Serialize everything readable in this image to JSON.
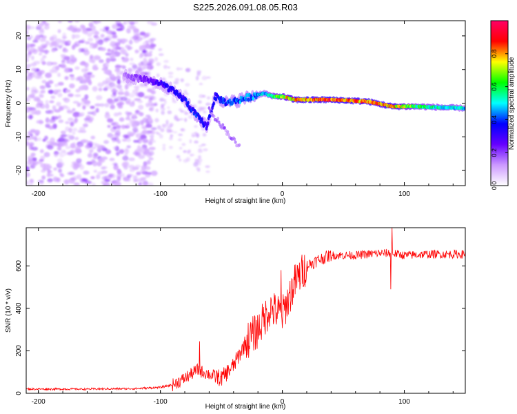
{
  "title": "S225.2026.091.08.05.R03",
  "chart_data": [
    {
      "type": "heatmap",
      "title": "S225.2026.091.08.05.R03",
      "xlabel": "Height of straight line (km)",
      "ylabel": "Frequency (Hz)",
      "xlim": [
        -210,
        150
      ],
      "ylim": [
        -24.5,
        24.5
      ],
      "xticks": [
        -200,
        -100,
        0,
        100
      ],
      "yticks": [
        -20,
        -10,
        0,
        10,
        20
      ],
      "colorbar": {
        "label": "Normalized spectral amplitude",
        "range": [
          0,
          1
        ],
        "ticks": [
          "0.0",
          "0.2",
          "0.4",
          "0.6",
          "0.8"
        ],
        "colors": [
          "#ffffff",
          "#cc99ff",
          "#6600ff",
          "#0000ff",
          "#00ffff",
          "#00ff00",
          "#ffff00",
          "#ff0000",
          "#ff0066"
        ]
      },
      "ridge": {
        "description_x_km": [
          -130,
          -110,
          -95,
          -80,
          -72,
          -62,
          -55,
          -45,
          -35,
          -25,
          -15,
          -8,
          0,
          10,
          40,
          70,
          90,
          110,
          150
        ],
        "frequency_hz": [
          8,
          7,
          5,
          1,
          -3,
          -7,
          2,
          0,
          1,
          2,
          3,
          2,
          2,
          1,
          1,
          0.5,
          -1,
          -1,
          -1.5
        ],
        "amplitude": [
          0.15,
          0.25,
          0.35,
          0.35,
          0.4,
          0.35,
          0.35,
          0.4,
          0.45,
          0.45,
          0.5,
          0.6,
          0.7,
          0.85,
          0.9,
          0.85,
          0.85,
          0.6,
          0.5
        ]
      }
    },
    {
      "type": "line",
      "xlabel": "Height of straight line (km)",
      "ylabel": "SNR (10 * v/v)",
      "xlim": [
        -210,
        150
      ],
      "ylim": [
        0,
        780
      ],
      "xticks": [
        -200,
        -100,
        0,
        100
      ],
      "yticks": [
        0,
        200,
        400,
        600
      ],
      "series": [
        {
          "name": "SNR",
          "color": "#ff0000",
          "x": [
            -210,
            -160,
            -120,
            -100,
            -90,
            -80,
            -70,
            -60,
            -50,
            -40,
            -30,
            -20,
            -10,
            0,
            10,
            20,
            30,
            40,
            60,
            80,
            90,
            100,
            120,
            150
          ],
          "values": [
            20,
            20,
            22,
            28,
            40,
            70,
            110,
            90,
            70,
            130,
            240,
            300,
            400,
            370,
            520,
            600,
            630,
            650,
            650,
            660,
            660,
            650,
            655,
            655
          ],
          "spikes": [
            {
              "x": -68,
              "value": 245
            },
            {
              "x": 90,
              "value": 780
            },
            {
              "x": 89,
              "value": 490
            },
            {
              "x": -1,
              "value": 580
            }
          ]
        }
      ]
    }
  ]
}
